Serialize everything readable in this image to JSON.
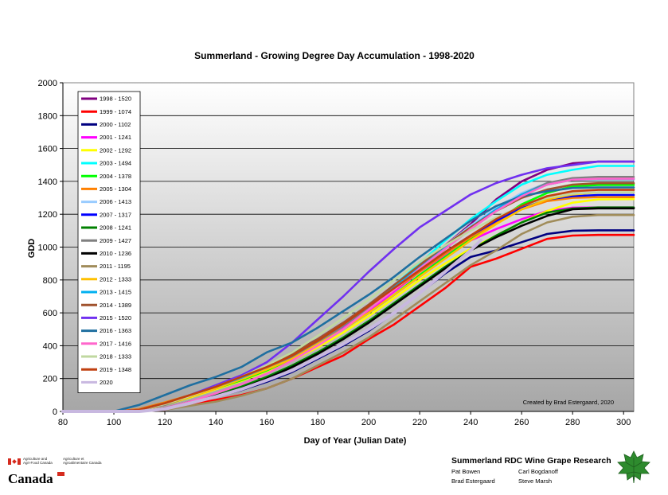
{
  "chart_data": {
    "type": "line",
    "title": "Summerland - Growing Degree Day Accumulation - 1998-2020",
    "xlabel": "Day of Year (Julian Date)",
    "ylabel": "GDD",
    "xlim": [
      80,
      304
    ],
    "ylim": [
      0,
      2000
    ],
    "x_ticks": [
      80,
      100,
      120,
      140,
      160,
      180,
      200,
      220,
      240,
      260,
      280,
      300
    ],
    "y_ticks": [
      0,
      200,
      400,
      600,
      800,
      1000,
      1200,
      1400,
      1600,
      1800,
      2000
    ],
    "grid": true,
    "legend_position": "top-left",
    "annotation": "Created by Brad Estergaard, 2020",
    "series": [
      {
        "name": "1998 - 1520",
        "color": "#800080",
        "x": [
          80,
          100,
          110,
          120,
          130,
          140,
          150,
          160,
          170,
          180,
          190,
          200,
          210,
          220,
          230,
          240,
          250,
          260,
          270,
          280,
          290,
          304
        ],
        "y": [
          0,
          0,
          10,
          45,
          95,
          150,
          210,
          275,
          360,
          440,
          540,
          640,
          760,
          880,
          1010,
          1140,
          1290,
          1400,
          1470,
          1510,
          1520,
          1520
        ]
      },
      {
        "name": "1999 - 1074",
        "color": "#ff0000",
        "x": [
          80,
          100,
          110,
          120,
          130,
          140,
          150,
          160,
          170,
          180,
          190,
          200,
          210,
          220,
          230,
          240,
          250,
          260,
          270,
          280,
          290,
          304
        ],
        "y": [
          0,
          0,
          0,
          10,
          45,
          70,
          100,
          140,
          200,
          270,
          340,
          440,
          530,
          640,
          750,
          880,
          930,
          990,
          1050,
          1070,
          1074,
          1074
        ]
      },
      {
        "name": "2000 - 1102",
        "color": "#000080",
        "x": [
          80,
          100,
          110,
          120,
          130,
          140,
          150,
          160,
          170,
          180,
          190,
          200,
          210,
          220,
          230,
          240,
          250,
          260,
          270,
          280,
          290,
          304
        ],
        "y": [
          0,
          0,
          0,
          15,
          50,
          90,
          130,
          180,
          240,
          320,
          400,
          490,
          600,
          720,
          840,
          940,
          980,
          1030,
          1080,
          1100,
          1102,
          1102
        ]
      },
      {
        "name": "2001 - 1241",
        "color": "#ff00ff",
        "x": [
          80,
          100,
          110,
          120,
          130,
          140,
          150,
          160,
          170,
          180,
          190,
          200,
          210,
          220,
          230,
          240,
          250,
          260,
          270,
          280,
          290,
          304
        ],
        "y": [
          0,
          0,
          5,
          40,
          90,
          140,
          200,
          265,
          330,
          420,
          510,
          610,
          730,
          850,
          950,
          1040,
          1110,
          1170,
          1220,
          1240,
          1241,
          1241
        ]
      },
      {
        "name": "2002 - 1292",
        "color": "#ffff00",
        "x": [
          80,
          100,
          110,
          120,
          130,
          140,
          150,
          160,
          170,
          180,
          190,
          200,
          210,
          220,
          230,
          240,
          250,
          260,
          270,
          280,
          290,
          304
        ],
        "y": [
          0,
          0,
          5,
          40,
          85,
          135,
          185,
          245,
          310,
          390,
          480,
          580,
          690,
          800,
          900,
          990,
          1070,
          1150,
          1220,
          1270,
          1290,
          1292
        ]
      },
      {
        "name": "2003 - 1494",
        "color": "#00ffff",
        "x": [
          80,
          100,
          110,
          120,
          130,
          140,
          150,
          160,
          170,
          180,
          190,
          200,
          210,
          220,
          230,
          240,
          250,
          260,
          270,
          280,
          290,
          304
        ],
        "y": [
          0,
          0,
          10,
          45,
          100,
          150,
          200,
          260,
          330,
          420,
          520,
          640,
          770,
          900,
          1040,
          1170,
          1280,
          1380,
          1440,
          1470,
          1494,
          1494
        ]
      },
      {
        "name": "2004 - 1378",
        "color": "#00ff00",
        "x": [
          80,
          100,
          110,
          120,
          130,
          140,
          150,
          160,
          170,
          180,
          190,
          200,
          210,
          220,
          230,
          240,
          250,
          260,
          270,
          280,
          290,
          304
        ],
        "y": [
          0,
          0,
          10,
          45,
          95,
          140,
          190,
          250,
          320,
          410,
          500,
          600,
          710,
          830,
          940,
          1050,
          1160,
          1260,
          1330,
          1370,
          1378,
          1378
        ]
      },
      {
        "name": "2005 - 1304",
        "color": "#ff8000",
        "x": [
          80,
          100,
          110,
          120,
          130,
          140,
          150,
          160,
          170,
          180,
          190,
          200,
          210,
          220,
          230,
          240,
          250,
          260,
          270,
          280,
          290,
          304
        ],
        "y": [
          0,
          0,
          15,
          55,
          100,
          150,
          210,
          270,
          340,
          430,
          530,
          630,
          740,
          850,
          960,
          1060,
          1150,
          1230,
          1280,
          1300,
          1304,
          1304
        ]
      },
      {
        "name": "2006 - 1413",
        "color": "#99ccff",
        "x": [
          80,
          100,
          110,
          120,
          130,
          140,
          150,
          160,
          170,
          180,
          190,
          200,
          210,
          220,
          230,
          240,
          250,
          260,
          270,
          280,
          290,
          304
        ],
        "y": [
          0,
          0,
          10,
          45,
          95,
          145,
          200,
          265,
          340,
          430,
          540,
          650,
          770,
          890,
          1010,
          1130,
          1240,
          1330,
          1390,
          1410,
          1413,
          1413
        ]
      },
      {
        "name": "2007 - 1317",
        "color": "#0000ff",
        "x": [
          80,
          100,
          110,
          120,
          130,
          140,
          150,
          160,
          170,
          180,
          190,
          200,
          210,
          220,
          230,
          240,
          250,
          260,
          270,
          280,
          290,
          304
        ],
        "y": [
          0,
          0,
          10,
          45,
          95,
          145,
          205,
          270,
          340,
          430,
          530,
          640,
          750,
          860,
          970,
          1070,
          1160,
          1240,
          1290,
          1310,
          1317,
          1317
        ]
      },
      {
        "name": "2008 - 1241",
        "color": "#008000",
        "x": [
          80,
          100,
          110,
          120,
          130,
          140,
          150,
          160,
          170,
          180,
          190,
          200,
          210,
          220,
          230,
          240,
          250,
          260,
          270,
          280,
          290,
          304
        ],
        "y": [
          0,
          0,
          0,
          20,
          60,
          100,
          150,
          210,
          280,
          360,
          450,
          550,
          660,
          770,
          880,
          980,
          1070,
          1150,
          1210,
          1235,
          1241,
          1241
        ]
      },
      {
        "name": "2009 - 1427",
        "color": "#808080",
        "x": [
          80,
          100,
          110,
          120,
          130,
          140,
          150,
          160,
          170,
          180,
          190,
          200,
          210,
          220,
          230,
          240,
          250,
          260,
          270,
          280,
          290,
          304
        ],
        "y": [
          0,
          0,
          10,
          40,
          90,
          140,
          200,
          260,
          330,
          420,
          520,
          630,
          750,
          870,
          990,
          1110,
          1220,
          1320,
          1390,
          1420,
          1427,
          1427
        ]
      },
      {
        "name": "2010 - 1236",
        "color": "#000000",
        "x": [
          80,
          100,
          110,
          120,
          130,
          140,
          150,
          160,
          170,
          180,
          190,
          200,
          210,
          220,
          230,
          240,
          250,
          260,
          270,
          280,
          290,
          304
        ],
        "y": [
          0,
          0,
          0,
          20,
          55,
          95,
          140,
          200,
          270,
          350,
          440,
          540,
          650,
          760,
          870,
          980,
          1060,
          1130,
          1190,
          1230,
          1236,
          1236
        ]
      },
      {
        "name": "2011 - 1195",
        "color": "#a08c5a",
        "x": [
          80,
          100,
          110,
          120,
          130,
          140,
          150,
          160,
          170,
          180,
          190,
          200,
          210,
          220,
          230,
          240,
          250,
          260,
          270,
          280,
          290,
          304
        ],
        "y": [
          0,
          0,
          0,
          10,
          35,
          60,
          95,
          140,
          200,
          280,
          360,
          450,
          560,
          670,
          780,
          890,
          980,
          1080,
          1150,
          1185,
          1195,
          1195
        ]
      },
      {
        "name": "2012 - 1333",
        "color": "#ffc000",
        "x": [
          80,
          100,
          110,
          120,
          130,
          140,
          150,
          160,
          170,
          180,
          190,
          200,
          210,
          220,
          230,
          240,
          250,
          260,
          270,
          280,
          290,
          304
        ],
        "y": [
          0,
          0,
          10,
          45,
          90,
          140,
          195,
          255,
          320,
          410,
          500,
          600,
          710,
          820,
          930,
          1040,
          1140,
          1230,
          1290,
          1320,
          1333,
          1333
        ]
      },
      {
        "name": "2013 - 1415",
        "color": "#00b0f0",
        "x": [
          80,
          100,
          110,
          120,
          130,
          140,
          150,
          160,
          170,
          180,
          190,
          200,
          210,
          220,
          230,
          240,
          250,
          260,
          270,
          280,
          290,
          304
        ],
        "y": [
          0,
          0,
          10,
          50,
          100,
          150,
          205,
          270,
          340,
          430,
          530,
          640,
          760,
          880,
          1000,
          1120,
          1230,
          1320,
          1380,
          1410,
          1415,
          1415
        ]
      },
      {
        "name": "2014 - 1389",
        "color": "#a0522d",
        "x": [
          80,
          100,
          110,
          120,
          130,
          140,
          150,
          160,
          170,
          180,
          190,
          200,
          210,
          220,
          230,
          240,
          250,
          260,
          270,
          280,
          290,
          304
        ],
        "y": [
          0,
          0,
          10,
          50,
          100,
          155,
          210,
          275,
          350,
          440,
          540,
          650,
          770,
          890,
          1010,
          1120,
          1220,
          1300,
          1350,
          1380,
          1389,
          1389
        ]
      },
      {
        "name": "2015 - 1520",
        "color": "#7030f0",
        "x": [
          80,
          100,
          110,
          120,
          130,
          140,
          150,
          160,
          170,
          180,
          190,
          200,
          210,
          220,
          230,
          240,
          250,
          260,
          270,
          280,
          290,
          304
        ],
        "y": [
          0,
          0,
          10,
          45,
          100,
          160,
          220,
          300,
          420,
          560,
          700,
          850,
          990,
          1120,
          1220,
          1320,
          1390,
          1440,
          1480,
          1500,
          1520,
          1520
        ]
      },
      {
        "name": "2016 - 1363",
        "color": "#1f6fa0",
        "x": [
          80,
          100,
          110,
          120,
          130,
          140,
          150,
          160,
          170,
          180,
          190,
          200,
          210,
          220,
          230,
          240,
          250,
          260,
          270,
          280,
          290,
          304
        ],
        "y": [
          0,
          0,
          40,
          100,
          160,
          210,
          270,
          360,
          420,
          510,
          610,
          710,
          820,
          940,
          1050,
          1160,
          1250,
          1310,
          1340,
          1360,
          1363,
          1363
        ]
      },
      {
        "name": "2017 - 1416",
        "color": "#ff66cc",
        "x": [
          80,
          100,
          110,
          120,
          130,
          140,
          150,
          160,
          170,
          180,
          190,
          200,
          210,
          220,
          230,
          240,
          250,
          260,
          270,
          280,
          290,
          304
        ],
        "y": [
          0,
          0,
          0,
          20,
          60,
          110,
          165,
          230,
          310,
          400,
          500,
          620,
          740,
          870,
          990,
          1110,
          1220,
          1310,
          1380,
          1410,
          1416,
          1416
        ]
      },
      {
        "name": "2018 - 1333",
        "color": "#c0d8a0",
        "x": [
          80,
          100,
          110,
          120,
          130,
          140,
          150,
          160,
          170,
          180,
          190,
          200,
          210,
          220,
          230,
          240,
          250,
          260,
          270,
          280,
          290,
          304
        ],
        "y": [
          0,
          0,
          10,
          45,
          95,
          150,
          210,
          280,
          360,
          460,
          570,
          680,
          800,
          910,
          1010,
          1100,
          1180,
          1250,
          1300,
          1325,
          1333,
          1333
        ]
      },
      {
        "name": "2019 - 1348",
        "color": "#c04010",
        "x": [
          80,
          100,
          110,
          120,
          130,
          140,
          150,
          160,
          170,
          180,
          190,
          200,
          210,
          220,
          230,
          240,
          250,
          260,
          270,
          280,
          290,
          304
        ],
        "y": [
          0,
          0,
          10,
          50,
          100,
          150,
          210,
          270,
          340,
          430,
          530,
          640,
          750,
          860,
          970,
          1070,
          1170,
          1250,
          1310,
          1340,
          1348,
          1348
        ]
      },
      {
        "name": "2020",
        "color": "#c8b8e0",
        "x": [
          80,
          100,
          110,
          120,
          130,
          140,
          150,
          160,
          170,
          180,
          190,
          200,
          210,
          220,
          230,
          240,
          244
        ],
        "y": [
          0,
          0,
          0,
          15,
          50,
          90,
          135,
          190,
          250,
          330,
          410,
          500,
          600,
          720,
          850,
          980,
          1040
        ]
      }
    ]
  },
  "footer": {
    "agency_en": "Agriculture and\nAgri-Food Canada",
    "agency_fr": "Agriculture et\nAgroalimentaire Canada",
    "wordmark": "Canada",
    "rdc_title": "Summerland RDC Wine Grape Research",
    "people": [
      "Pat Bowen",
      "Carl Bogdanoff",
      "Brad Estergaard",
      "Steve Marsh"
    ]
  }
}
